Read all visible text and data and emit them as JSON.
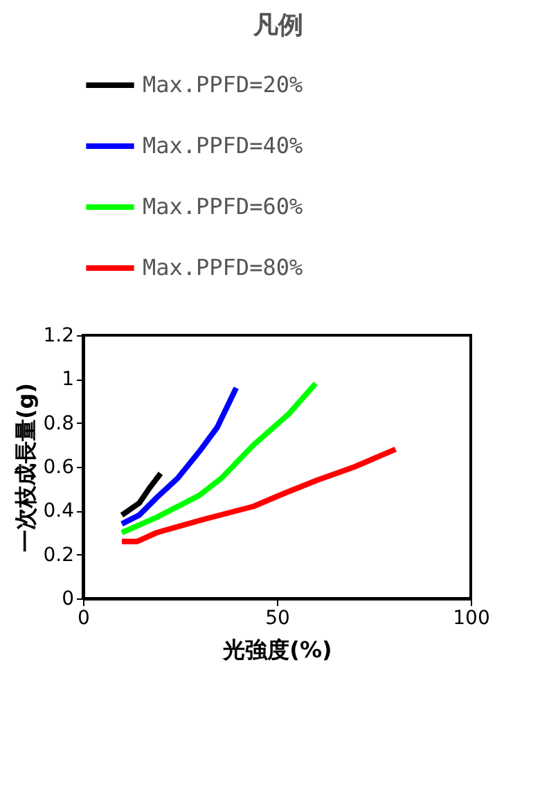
{
  "chart_data": {
    "type": "line",
    "xlabel": "光強度(%)",
    "ylabel": "一次枝成長量(g)",
    "legend_title": "凡例",
    "series": [
      {
        "name": "Max.PPFD=20%",
        "color": "#000000",
        "x": [
          10,
          14.5,
          17,
          20
        ],
        "values": [
          0.38,
          0.435,
          0.5,
          0.57
        ]
      },
      {
        "name": "Max.PPFD=40%",
        "color": "#0000ff",
        "x": [
          10,
          14.5,
          19,
          24.5,
          30,
          34.6,
          39.5
        ],
        "values": [
          0.34,
          0.38,
          0.46,
          0.55,
          0.67,
          0.78,
          0.96
        ]
      },
      {
        "name": "Max.PPFD=60%",
        "color": "#00ff00",
        "x": [
          10,
          19,
          30,
          35.8,
          44,
          53,
          60
        ],
        "values": [
          0.3,
          0.37,
          0.47,
          0.55,
          0.7,
          0.84,
          0.98
        ]
      },
      {
        "name": "Max.PPFD=80%",
        "color": "#ff0000",
        "x": [
          10,
          14,
          19,
          31,
          44,
          52,
          60.5,
          70,
          80.6
        ],
        "values": [
          0.26,
          0.26,
          0.3,
          0.36,
          0.42,
          0.48,
          0.54,
          0.6,
          0.68
        ]
      }
    ],
    "xlim": [
      0,
      100
    ],
    "xticks": [
      0,
      50,
      100
    ],
    "ylim": [
      0,
      1.2
    ],
    "yticks": [
      0,
      0.2,
      0.4,
      0.6,
      0.8,
      1,
      1.2
    ],
    "grid": false,
    "legend": "top",
    "marker": "none",
    "line_style": "solid"
  }
}
